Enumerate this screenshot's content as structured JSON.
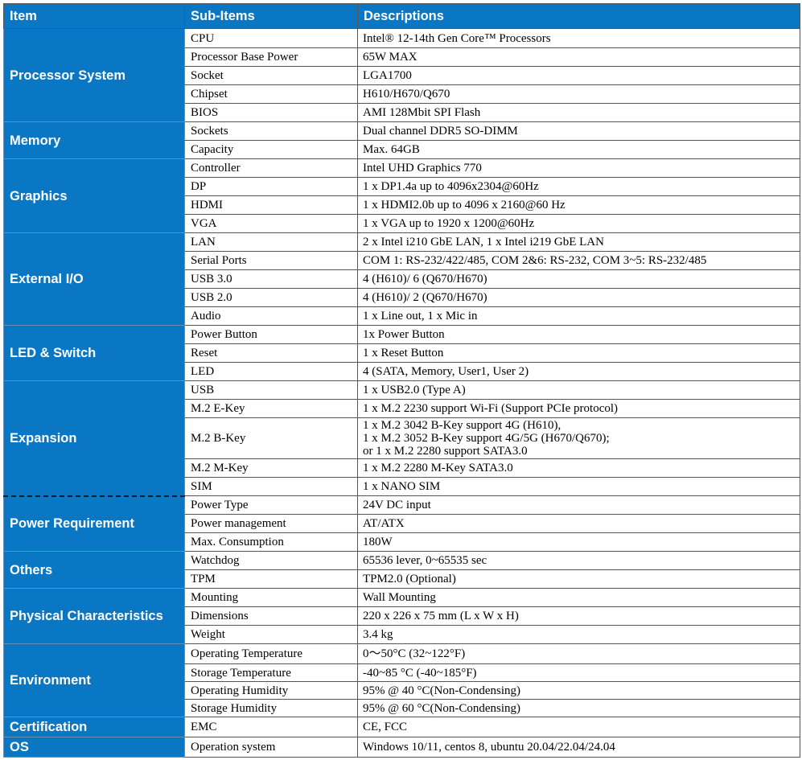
{
  "header": {
    "col1": "Item",
    "col2": "Sub-Items",
    "col3": "Descriptions"
  },
  "sections": [
    {
      "category": "Processor System",
      "rows": [
        {
          "sub": "CPU",
          "desc": "Intel® 12-14th Gen Core™ Processors"
        },
        {
          "sub": "Processor Base Power",
          "desc": "65W MAX"
        },
        {
          "sub": "Socket",
          "desc": "LGA1700"
        },
        {
          "sub": "Chipset",
          "desc": "H610/H670/Q670"
        },
        {
          "sub": "BIOS",
          "desc": "AMI 128Mbit SPI Flash"
        }
      ]
    },
    {
      "category": "Memory",
      "rows": [
        {
          "sub": "Sockets",
          "desc": "Dual channel  DDR5 SO-DIMM"
        },
        {
          "sub": "Capacity",
          "desc": "Max. 64GB"
        }
      ]
    },
    {
      "category": "Graphics",
      "rows": [
        {
          "sub": "Controller",
          "desc": "Intel UHD Graphics 770"
        },
        {
          "sub": "DP",
          "desc": "1 x DP1.4a up to 4096x2304@60Hz"
        },
        {
          "sub": "HDMI",
          "desc": "1 x HDMI2.0b up to 4096 x 2160@60 Hz"
        },
        {
          "sub": "VGA",
          "desc": "1 x VGA up to 1920 x 1200@60Hz"
        }
      ]
    },
    {
      "category": "External I/O",
      "rows": [
        {
          "sub": "LAN",
          "desc": "2 x Intel i210 GbE LAN, 1 x Intel i219 GbE LAN"
        },
        {
          "sub": "Serial Ports",
          "desc": "COM 1: RS-232/422/485, COM 2&6: RS-232, COM 3~5: RS-232/485"
        },
        {
          "sub": "USB 3.0",
          "desc": "4 (H610)/ 6 (Q670/H670)"
        },
        {
          "sub": "USB 2.0",
          "desc": "4 (H610)/ 2 (Q670/H670)"
        },
        {
          "sub": "Audio",
          "desc": "1 x  Line out, 1 x Mic in"
        }
      ]
    },
    {
      "category": "LED & Switch",
      "rows": [
        {
          "sub": "Power Button",
          "desc": "1x Power Button"
        },
        {
          "sub": "Reset",
          "desc": "1 x Reset Button"
        },
        {
          "sub": "LED",
          "desc": "4 (SATA, Memory, User1, User 2)"
        }
      ]
    },
    {
      "category": "Expansion",
      "rows": [
        {
          "sub": "USB",
          "desc": "1 x USB2.0 (Type A)"
        },
        {
          "sub": "M.2 E-Key",
          "desc": "1 x M.2 2230 support Wi-Fi (Support PCIe protocol)"
        },
        {
          "sub": "M.2 B-Key",
          "desc_lines": [
            "1 x M.2 3042 B-Key support 4G (H610),",
            "1 x M.2 3052 B-Key support 4G/5G (H670/Q670);",
            "or 1 x M.2 2280 support SATA3.0"
          ]
        },
        {
          "sub": "M.2 M-Key",
          "desc": "1 x M.2 2280 M-Key SATA3.0"
        },
        {
          "sub": "SIM",
          "desc": "1 x NANO SIM"
        }
      ]
    },
    {
      "category": "Power Requirement",
      "rows": [
        {
          "sub": "Power Type",
          "desc": "24V DC input"
        },
        {
          "sub": "Power management",
          "desc": "AT/ATX"
        },
        {
          "sub": "Max. Consumption",
          "desc": "180W"
        }
      ]
    },
    {
      "category": "Others",
      "rows": [
        {
          "sub": "Watchdog",
          "desc": "65536 lever, 0~65535 sec"
        },
        {
          "sub": "TPM",
          "desc": "TPM2.0 (Optional)"
        }
      ]
    },
    {
      "category": "Physical Characteristics",
      "rows": [
        {
          "sub": "Mounting",
          "desc": "Wall Mounting"
        },
        {
          "sub": "Dimensions",
          "desc": "220 x 226 x 75 mm (L x W x H)"
        },
        {
          "sub": "Weight",
          "desc": "3.4 kg"
        }
      ]
    },
    {
      "category": "Environment",
      "rows": [
        {
          "sub": "Operating Temperature",
          "desc": "0～50°C (32~122°F)"
        },
        {
          "sub": "Storage Temperature",
          "desc": "-40~85 °C  (-40~185°F)"
        },
        {
          "sub": "Operating Humidity",
          "desc": "95% @ 40 °C(Non-Condensing)"
        },
        {
          "sub": "Storage Humidity",
          "desc": "95% @ 60 °C(Non-Condensing)"
        }
      ]
    },
    {
      "category": "Certification",
      "rows": [
        {
          "sub": "EMC",
          "desc": "CE, FCC"
        }
      ]
    },
    {
      "category": "OS",
      "rows": [
        {
          "sub": "Operation system",
          "desc": "Windows 10/11, centos 8, ubuntu 20.04/22.04/24.04"
        }
      ]
    }
  ]
}
